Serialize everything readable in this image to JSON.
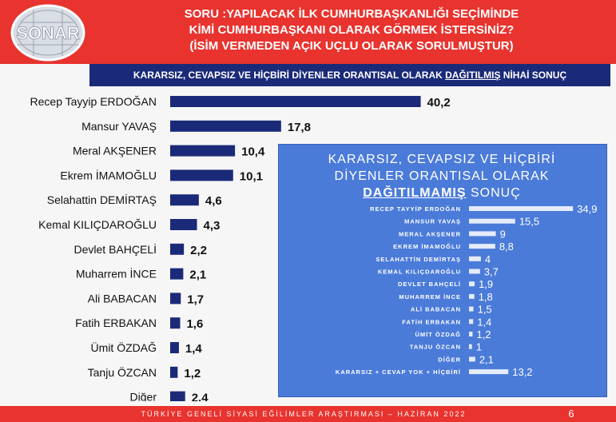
{
  "logo": {
    "text": "SONAR"
  },
  "question": {
    "line1": "SORU :YAPILACAK İLK CUMHURBAŞKANLIĞI SEÇİMİNDE",
    "line2": "KİMİ CUMHURBAŞKANI OLARAK GÖRMEK İSTERSİNİZ?",
    "line3": "(İSİM VERMEDEN AÇIK UÇLU OLARAK SORULMUŞTUR)"
  },
  "subtitle": {
    "prefix": "KARARSIZ, CEVAPSIZ VE HİÇBİRİ DİYENLER ORANTISAL OLARAK ",
    "underlined": "DAĞITILMIŞ",
    "suffix": " NİHAİ SONUÇ"
  },
  "inset_title": {
    "line1": "KARARSIZ, CEVAPSIZ VE HİÇBİRİ",
    "line2": "DİYENLER ORANTISAL OLARAK",
    "underlined": "DAĞITILMAMIŞ",
    "suffix": " SONUÇ"
  },
  "footer": {
    "text": "TÜRKİYE GENELİ SİYASİ EĞİLİMLER ARAŞTIRMASI – HAZİRAN 2022",
    "page": "6"
  },
  "colors": {
    "header": "#e8332e",
    "navy": "#1b2a78",
    "inset_bg": "#4b7bd9"
  },
  "chart_data": [
    {
      "type": "bar",
      "orientation": "horizontal",
      "categories": [
        "Recep Tayyip ERDOĞAN",
        "Mansur YAVAŞ",
        "Meral AKŞENER",
        "Ekrem İMAMOĞLU",
        "Selahattin DEMİRTAŞ",
        "Kemal KILIÇDAROĞLU",
        "Devlet BAHÇELİ",
        "Muharrem İNCE",
        "Ali BABACAN",
        "Fatih ERBAKAN",
        "Ümit ÖZDAĞ",
        "Tanju ÖZCAN",
        "Diğer"
      ],
      "values": [
        40.2,
        17.8,
        10.4,
        10.1,
        4.6,
        4.3,
        2.2,
        2.1,
        1.7,
        1.6,
        1.4,
        1.2,
        2.4
      ],
      "value_labels": [
        "40,2",
        "17,8",
        "10,4",
        "10,1",
        "4,6",
        "4,3",
        "2,2",
        "2,1",
        "1,7",
        "1,6",
        "1,4",
        "1,2",
        "2,4"
      ],
      "bar_color": "#1b2a78"
    },
    {
      "type": "bar",
      "orientation": "horizontal",
      "categories": [
        "RECEP TAYYİP ERDOĞAN",
        "MANSUR YAVAŞ",
        "MERAL AKŞENER",
        "EKREM İMAMOĞLU",
        "SELAHATTİN DEMİRTAŞ",
        "KEMAL KILIÇDAROĞLU",
        "DEVLET BAHÇELİ",
        "MUHARREM İNCE",
        "ALİ BABACAN",
        "FATİH ERBAKAN",
        "ÜMİT ÖZDAĞ",
        "TANJU ÖZCAN",
        "DİĞER",
        "KARARSIZ + CEVAP YOK + HİÇBİRİ"
      ],
      "values": [
        34.9,
        15.5,
        9,
        8.8,
        4,
        3.7,
        1.9,
        1.8,
        1.5,
        1.4,
        1.2,
        1,
        2.1,
        13.2
      ],
      "value_labels": [
        "34,9",
        "15,5",
        "9",
        "8,8",
        "4",
        "3,7",
        "1,9",
        "1,8",
        "1,5",
        "1,4",
        "1,2",
        "1",
        "2,1",
        "13,2"
      ],
      "bar_color": "#ffffff"
    }
  ]
}
